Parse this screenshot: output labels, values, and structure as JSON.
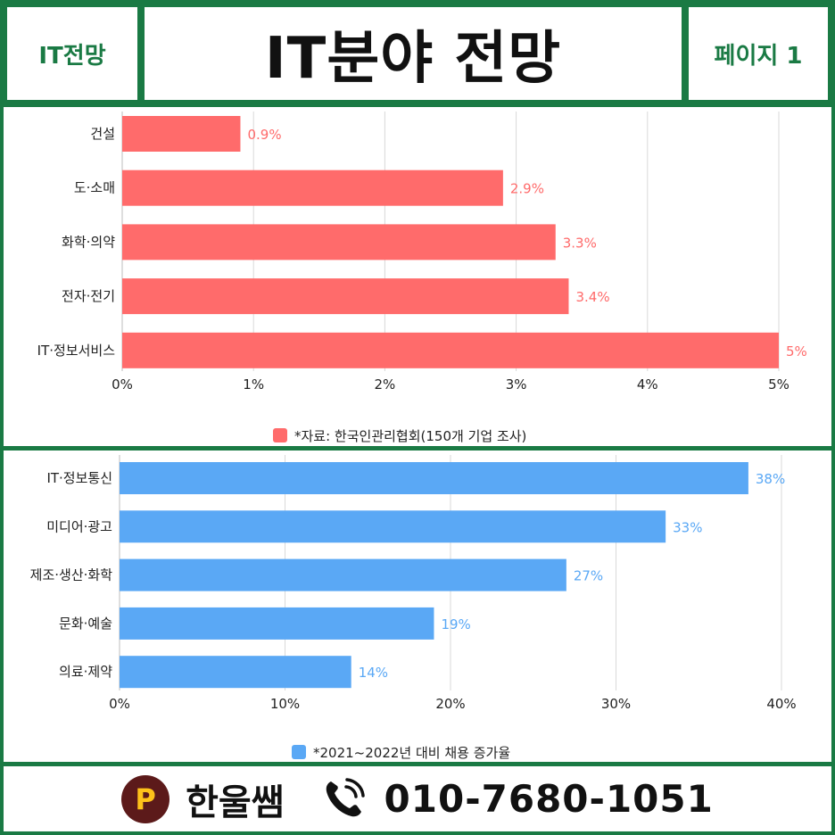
{
  "header": {
    "left_label": "IT전망",
    "title": "IT분야 전망",
    "right_label": "페이지 1"
  },
  "footer": {
    "name": "한울쌤",
    "phone": "010-7680-1051",
    "logo_letter": "P",
    "logo_icon": "p-logo-icon",
    "phone_icon": "phone-icon"
  },
  "chart_data": [
    {
      "type": "bar",
      "orientation": "horizontal",
      "categories": [
        "건설",
        "도·소매",
        "화학·의약",
        "전자·전기",
        "IT·정보서비스"
      ],
      "values": [
        0.9,
        2.9,
        3.3,
        3.4,
        5
      ],
      "data_labels": [
        "0.9%",
        "2.9%",
        "3.3%",
        "3.4%",
        "5%"
      ],
      "xlim": [
        0,
        5
      ],
      "xticks": [
        "0%",
        "1%",
        "2%",
        "3%",
        "4%",
        "5%"
      ],
      "series": [
        {
          "name": "*자료: 한국인관리협회(150개 기업 조사)",
          "color": "#ff6b6b"
        }
      ],
      "legend_position": "bottom",
      "grid": true
    },
    {
      "type": "bar",
      "orientation": "horizontal",
      "categories": [
        "IT·정보통신",
        "미디어·광고",
        "제조·생산·화학",
        "문화·예술",
        "의료·제약"
      ],
      "values": [
        38,
        33,
        27,
        19,
        14
      ],
      "data_labels": [
        "38%",
        "33%",
        "27%",
        "19%",
        "14%"
      ],
      "xlim": [
        0,
        40
      ],
      "xticks": [
        "0%",
        "10%",
        "20%",
        "30%",
        "40%"
      ],
      "series": [
        {
          "name": "*2021~2022년 대비 채용 증가율",
          "color": "#5aa8f5"
        }
      ],
      "legend_position": "bottom",
      "grid": true
    }
  ]
}
